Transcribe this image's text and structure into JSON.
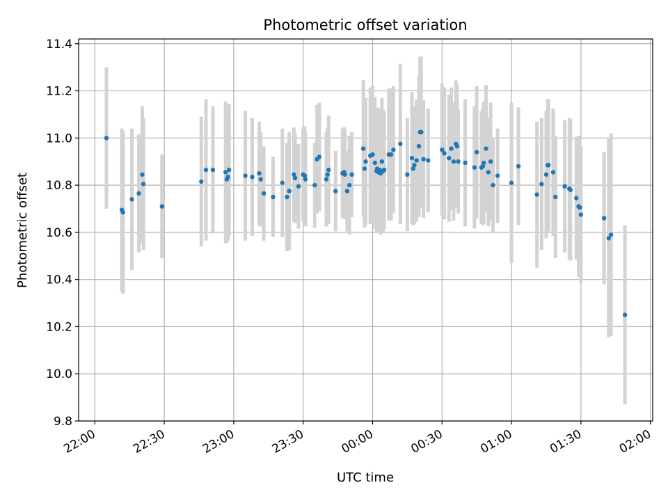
{
  "chart_data": {
    "type": "scatter",
    "title": "Photometric offset variation",
    "xlabel": "UTC time",
    "ylabel": "Photometric offset",
    "x_tick_labels": [
      "22:00",
      "22:30",
      "23:00",
      "23:30",
      "00:00",
      "00:30",
      "01:00",
      "01:30",
      "02:00"
    ],
    "y_tick_labels": [
      "9.8",
      "10.0",
      "10.2",
      "10.4",
      "10.6",
      "10.8",
      "11.0",
      "11.2",
      "11.4"
    ],
    "y_ticks": [
      9.8,
      10.0,
      10.2,
      10.4,
      10.6,
      10.8,
      11.0,
      11.2,
      11.4
    ],
    "xlim": [
      "21:53",
      "02:00"
    ],
    "ylim": [
      9.8,
      11.42
    ],
    "grid": true,
    "colors": {
      "point": "#1f77b4",
      "errorbar": "#d3d3d3",
      "grid": "#b0b0b0"
    },
    "x_ticks": [
      "22:00",
      "22:30",
      "23:00",
      "23:30",
      "00:00",
      "00:30",
      "01:00",
      "01:30",
      "02:00"
    ],
    "points": [
      {
        "t": "22:05",
        "y": 11.0,
        "err": 0.3
      },
      {
        "t": "22:11:40",
        "y": 10.695,
        "err": 0.345
      },
      {
        "t": "22:12:10",
        "y": 10.685,
        "err": 0.345
      },
      {
        "t": "22:16",
        "y": 10.74,
        "err": 0.3
      },
      {
        "t": "22:19",
        "y": 10.765,
        "err": 0.25
      },
      {
        "t": "22:20:30",
        "y": 10.845,
        "err": 0.29
      },
      {
        "t": "22:21",
        "y": 10.805,
        "err": 0.28
      },
      {
        "t": "22:29",
        "y": 10.71,
        "err": 0.22
      },
      {
        "t": "22:46",
        "y": 10.815,
        "err": 0.275
      },
      {
        "t": "22:48",
        "y": 10.865,
        "err": 0.3
      },
      {
        "t": "22:51",
        "y": 10.865,
        "err": 0.27
      },
      {
        "t": "22:56:30",
        "y": 10.855,
        "err": 0.3
      },
      {
        "t": "22:57",
        "y": 10.825,
        "err": 0.27
      },
      {
        "t": "22:57:30",
        "y": 10.835,
        "err": 0.27
      },
      {
        "t": "22:58",
        "y": 10.865,
        "err": 0.28
      },
      {
        "t": "23:05",
        "y": 10.84,
        "err": 0.275
      },
      {
        "t": "23:08",
        "y": 10.835,
        "err": 0.25
      },
      {
        "t": "23:11",
        "y": 10.85,
        "err": 0.22
      },
      {
        "t": "23:11:40",
        "y": 10.825,
        "err": 0.2
      },
      {
        "t": "23:13",
        "y": 10.765,
        "err": 0.2
      },
      {
        "t": "23:17",
        "y": 10.75,
        "err": 0.17
      },
      {
        "t": "23:21",
        "y": 10.81,
        "err": 0.23
      },
      {
        "t": "23:23",
        "y": 10.75,
        "err": 0.23
      },
      {
        "t": "23:24",
        "y": 10.775,
        "err": 0.25
      },
      {
        "t": "23:26",
        "y": 10.845,
        "err": 0.2
      },
      {
        "t": "23:26:30",
        "y": 10.83,
        "err": 0.19
      },
      {
        "t": "23:28",
        "y": 10.795,
        "err": 0.18
      },
      {
        "t": "23:30",
        "y": 10.845,
        "err": 0.2
      },
      {
        "t": "23:30:40",
        "y": 10.84,
        "err": 0.21
      },
      {
        "t": "23:31",
        "y": 10.825,
        "err": 0.2
      },
      {
        "t": "23:35",
        "y": 10.8,
        "err": 0.18
      },
      {
        "t": "23:36",
        "y": 10.91,
        "err": 0.23
      },
      {
        "t": "23:37",
        "y": 10.92,
        "err": 0.23
      },
      {
        "t": "23:40",
        "y": 10.825,
        "err": 0.2
      },
      {
        "t": "23:40:30",
        "y": 10.845,
        "err": 0.2
      },
      {
        "t": "23:41",
        "y": 10.865,
        "err": 0.23
      },
      {
        "t": "23:44",
        "y": 10.775,
        "err": 0.17
      },
      {
        "t": "23:47",
        "y": 10.85,
        "err": 0.19
      },
      {
        "t": "23:47:40",
        "y": 10.855,
        "err": 0.19
      },
      {
        "t": "23:48",
        "y": 10.845,
        "err": 0.19
      },
      {
        "t": "23:49",
        "y": 10.775,
        "err": 0.17
      },
      {
        "t": "23:50",
        "y": 10.8,
        "err": 0.21
      },
      {
        "t": "23:51",
        "y": 10.845,
        "err": 0.18
      },
      {
        "t": "23:56",
        "y": 10.955,
        "err": 0.29
      },
      {
        "t": "23:56:30",
        "y": 10.87,
        "err": 0.25
      },
      {
        "t": "23:57",
        "y": 10.9,
        "err": 0.27
      },
      {
        "t": "23:59",
        "y": 10.925,
        "err": 0.29
      },
      {
        "t": "00:00",
        "y": 10.93,
        "err": 0.29
      },
      {
        "t": "00:01",
        "y": 10.895,
        "err": 0.28
      },
      {
        "t": "00:01:40",
        "y": 10.86,
        "err": 0.26
      },
      {
        "t": "00:02",
        "y": 10.87,
        "err": 0.26
      },
      {
        "t": "00:02:30",
        "y": 10.855,
        "err": 0.25
      },
      {
        "t": "00:03",
        "y": 10.865,
        "err": 0.26
      },
      {
        "t": "00:03:30",
        "y": 10.85,
        "err": 0.26
      },
      {
        "t": "00:04",
        "y": 10.9,
        "err": 0.27
      },
      {
        "t": "00:04:30",
        "y": 10.86,
        "err": 0.26
      },
      {
        "t": "00:05",
        "y": 10.865,
        "err": 0.25
      },
      {
        "t": "00:07",
        "y": 10.93,
        "err": 0.28
      },
      {
        "t": "00:08",
        "y": 10.93,
        "err": 0.28
      },
      {
        "t": "00:09",
        "y": 10.95,
        "err": 0.27
      },
      {
        "t": "00:12",
        "y": 10.975,
        "err": 0.34
      },
      {
        "t": "00:15",
        "y": 10.845,
        "err": 0.24
      },
      {
        "t": "00:17",
        "y": 10.915,
        "err": 0.28
      },
      {
        "t": "00:17:30",
        "y": 10.87,
        "err": 0.24
      },
      {
        "t": "00:18",
        "y": 10.885,
        "err": 0.25
      },
      {
        "t": "00:19",
        "y": 10.905,
        "err": 0.26
      },
      {
        "t": "00:20",
        "y": 10.965,
        "err": 0.3
      },
      {
        "t": "00:20:30",
        "y": 11.025,
        "err": 0.32
      },
      {
        "t": "00:21",
        "y": 11.025,
        "err": 0.32
      },
      {
        "t": "00:22",
        "y": 10.91,
        "err": 0.25
      },
      {
        "t": "00:24",
        "y": 10.905,
        "err": 0.22
      },
      {
        "t": "00:30",
        "y": 10.95,
        "err": 0.28
      },
      {
        "t": "00:31",
        "y": 10.935,
        "err": 0.28
      },
      {
        "t": "00:33",
        "y": 10.915,
        "err": 0.27
      },
      {
        "t": "00:34",
        "y": 10.955,
        "err": 0.26
      },
      {
        "t": "00:35",
        "y": 10.9,
        "err": 0.25
      },
      {
        "t": "00:36",
        "y": 10.975,
        "err": 0.27
      },
      {
        "t": "00:36:30",
        "y": 10.965,
        "err": 0.26
      },
      {
        "t": "00:37",
        "y": 10.9,
        "err": 0.22
      },
      {
        "t": "00:40",
        "y": 10.895,
        "err": 0.27
      },
      {
        "t": "00:44",
        "y": 10.875,
        "err": 0.26
      },
      {
        "t": "00:45",
        "y": 10.94,
        "err": 0.28
      },
      {
        "t": "00:47",
        "y": 10.875,
        "err": 0.24
      },
      {
        "t": "00:47:40",
        "y": 10.88,
        "err": 0.25
      },
      {
        "t": "00:48",
        "y": 10.895,
        "err": 0.26
      },
      {
        "t": "00:49",
        "y": 10.955,
        "err": 0.27
      },
      {
        "t": "00:50",
        "y": 10.855,
        "err": 0.23
      },
      {
        "t": "00:51",
        "y": 10.9,
        "err": 0.25
      },
      {
        "t": "00:52",
        "y": 10.8,
        "err": 0.2
      },
      {
        "t": "00:54",
        "y": 10.84,
        "err": 0.2
      },
      {
        "t": "01:00",
        "y": 10.81,
        "err": 0.34
      },
      {
        "t": "01:03",
        "y": 10.88,
        "err": 0.25
      },
      {
        "t": "01:11",
        "y": 10.76,
        "err": 0.31
      },
      {
        "t": "01:13",
        "y": 10.805,
        "err": 0.28
      },
      {
        "t": "01:15",
        "y": 10.845,
        "err": 0.27
      },
      {
        "t": "01:15:40",
        "y": 10.885,
        "err": 0.28
      },
      {
        "t": "01:16",
        "y": 10.885,
        "err": 0.28
      },
      {
        "t": "01:18",
        "y": 10.855,
        "err": 0.27
      },
      {
        "t": "01:19",
        "y": 10.75,
        "err": 0.26
      },
      {
        "t": "01:23",
        "y": 10.795,
        "err": 0.28
      },
      {
        "t": "01:25",
        "y": 10.785,
        "err": 0.3
      },
      {
        "t": "01:25:30",
        "y": 10.78,
        "err": 0.3
      },
      {
        "t": "01:28",
        "y": 10.745,
        "err": 0.26
      },
      {
        "t": "01:29",
        "y": 10.71,
        "err": 0.3
      },
      {
        "t": "01:29:30",
        "y": 10.705,
        "err": 0.29
      },
      {
        "t": "01:30",
        "y": 10.675,
        "err": 0.29
      },
      {
        "t": "01:40",
        "y": 10.66,
        "err": 0.28
      },
      {
        "t": "01:42",
        "y": 10.575,
        "err": 0.42
      },
      {
        "t": "01:43",
        "y": 10.59,
        "err": 0.43
      },
      {
        "t": "01:49",
        "y": 10.25,
        "err": 0.38
      }
    ]
  }
}
